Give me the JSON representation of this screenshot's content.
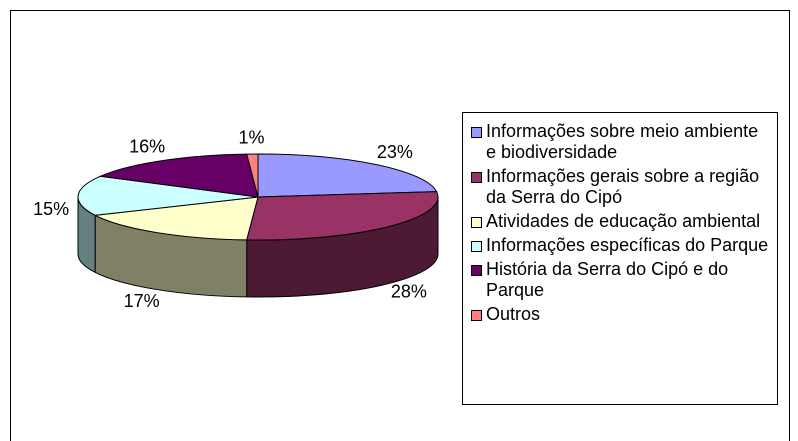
{
  "chart_data": {
    "type": "pie3d",
    "categories": [
      "Informações sobre meio ambiente e biodiversidade",
      "Informações gerais sobre a região da Serra do Cipó",
      "Atividades de educação ambiental",
      "Informações específicas do Parque",
      "História da Serra do Cipó e do Parque",
      "Outros"
    ],
    "values": [
      23,
      28,
      17,
      15,
      16,
      1
    ],
    "value_labels": [
      "23%",
      "28%",
      "17%",
      "15%",
      "16%",
      "1%"
    ],
    "colors": [
      "#9999ff",
      "#993366",
      "#ffffcc",
      "#ccffff",
      "#660066",
      "#ff8080"
    ],
    "legend": "right"
  }
}
